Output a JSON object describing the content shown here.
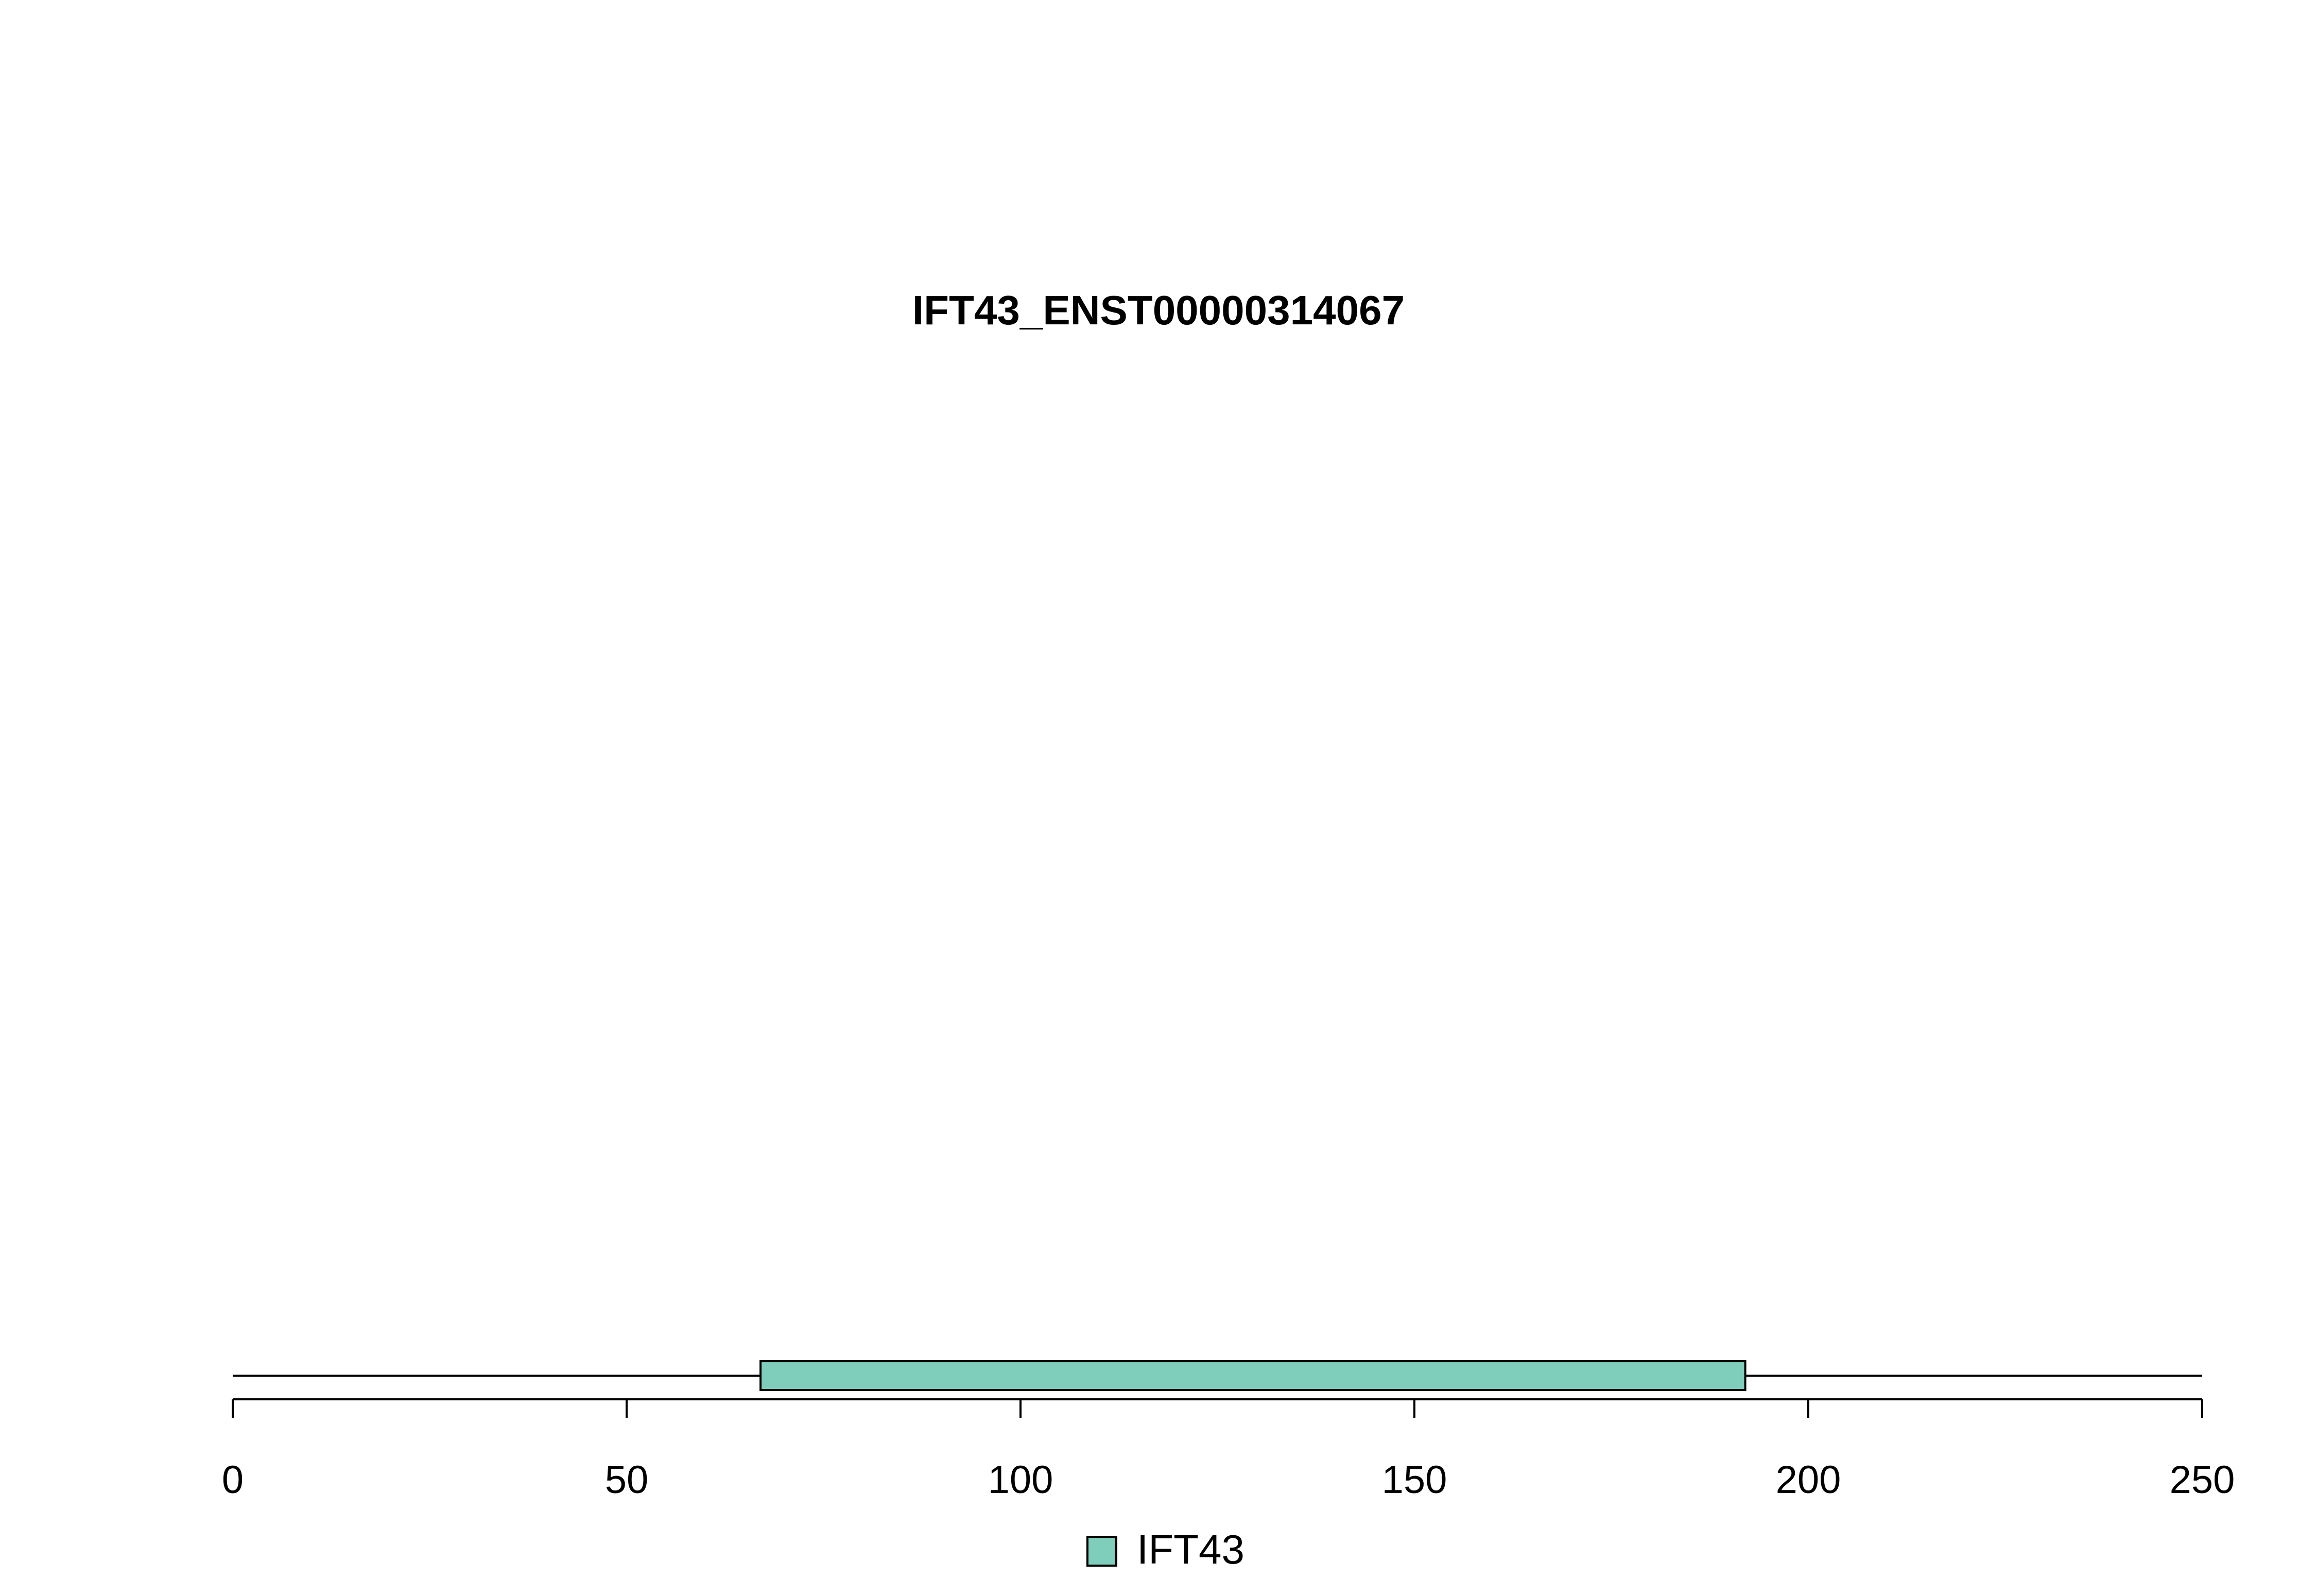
{
  "chart_data": {
    "type": "bar",
    "title": "IFT43_ENST00000314067",
    "xlabel": "",
    "ylabel": "",
    "xlim": [
      0,
      250
    ],
    "ticks": [
      0,
      50,
      100,
      150,
      200,
      250
    ],
    "tick_labels": [
      "0",
      "50",
      "100",
      "150",
      "200",
      "250"
    ],
    "backbone": [
      0,
      250
    ],
    "domains": [
      {
        "name": "IFT43",
        "start": 67,
        "end": 192,
        "color": "#7fcdbb"
      }
    ],
    "legend": {
      "placement": "bottom-center",
      "entries": [
        "IFT43"
      ]
    },
    "grid": false
  }
}
